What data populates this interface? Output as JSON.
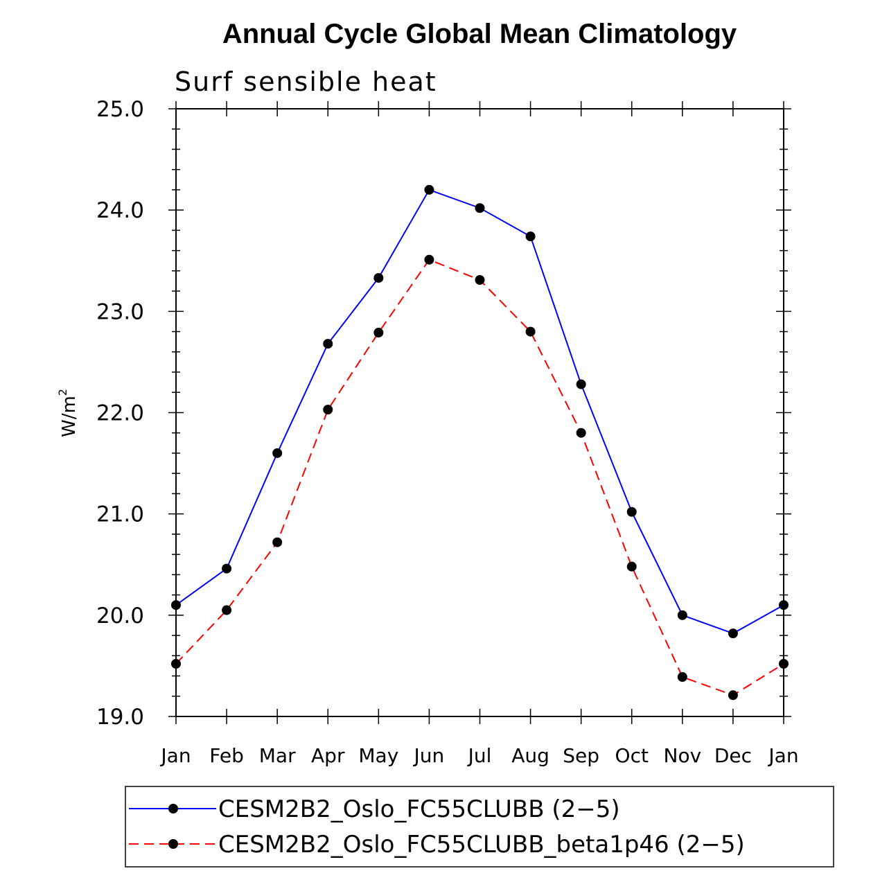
{
  "chart_data": {
    "type": "line",
    "title": "Annual Cycle Global Mean Climatology",
    "subtitle": "Surf sensible heat",
    "ylabel_base": "W/m",
    "ylabel_sup": "2",
    "ylim": [
      19.0,
      25.0
    ],
    "yticks": [
      "19.0",
      "20.0",
      "21.0",
      "22.0",
      "23.0",
      "24.0",
      "25.0"
    ],
    "categories": [
      "Jan",
      "Feb",
      "Mar",
      "Apr",
      "May",
      "Jun",
      "Jul",
      "Aug",
      "Sep",
      "Oct",
      "Nov",
      "Dec",
      "Jan"
    ],
    "series": [
      {
        "name": "CESM2B2_Oslo_FC55CLUBB (2−5)",
        "color": "#0000ff",
        "dash": "solid",
        "values": [
          20.1,
          20.46,
          21.6,
          22.68,
          23.33,
          24.2,
          24.02,
          23.74,
          22.28,
          21.02,
          20.0,
          19.82,
          20.1
        ]
      },
      {
        "name": "CESM2B2_Oslo_FC55CLUBB_beta1p46 (2−5)",
        "color": "#ff0000",
        "dash": "dashed",
        "values": [
          19.52,
          20.05,
          20.72,
          22.03,
          22.79,
          23.51,
          23.31,
          22.8,
          21.8,
          20.48,
          19.39,
          19.21,
          19.52
        ]
      }
    ]
  }
}
